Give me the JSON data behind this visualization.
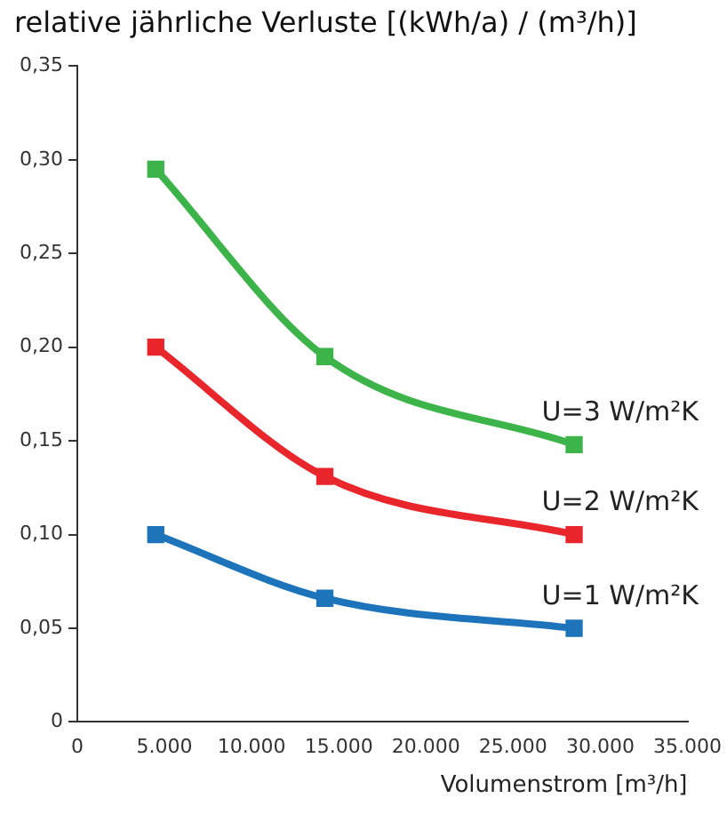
{
  "chart_data": {
    "type": "line",
    "title": "relative jährliche Verluste [(kWh/a) / (m³/h)]",
    "xlabel": "Volumenstrom [m³/h]",
    "x": [
      4500,
      14200,
      28500
    ],
    "series": [
      {
        "name": "U=3 W/m²K",
        "color": "#3cb44a",
        "values": [
          0.295,
          0.195,
          0.148
        ]
      },
      {
        "name": "U=2 W/m²K",
        "color": "#e8262b",
        "values": [
          0.2,
          0.131,
          0.1
        ]
      },
      {
        "name": "U=1 W/m²K",
        "color": "#1d74bb",
        "values": [
          0.1,
          0.066,
          0.05
        ]
      }
    ],
    "xlim": [
      0,
      35000
    ],
    "xticks": [
      0,
      {
        "value": 5000,
        "label": "5.000"
      },
      {
        "value": 10000,
        "label": "10.000"
      },
      {
        "value": 15000,
        "label": "15.000"
      },
      {
        "value": 20000,
        "label": "20.000"
      },
      {
        "value": 25000,
        "label": "25.000"
      },
      {
        "value": 30000,
        "label": "30.000"
      },
      {
        "value": 35000,
        "label": "35.000"
      }
    ],
    "ylim": [
      0,
      0.35
    ],
    "yticks": [
      0,
      {
        "value": 0.05,
        "label": "0,05"
      },
      {
        "value": 0.1,
        "label": "0,10"
      },
      {
        "value": 0.15,
        "label": "0,15"
      },
      {
        "value": 0.2,
        "label": "0,20"
      },
      {
        "value": 0.25,
        "label": "0,25"
      },
      {
        "value": 0.3,
        "label": "0,30"
      },
      {
        "value": 0.35,
        "label": "0,35"
      }
    ],
    "grid": false,
    "legend": false,
    "marker": "square",
    "line_style": "solid"
  }
}
